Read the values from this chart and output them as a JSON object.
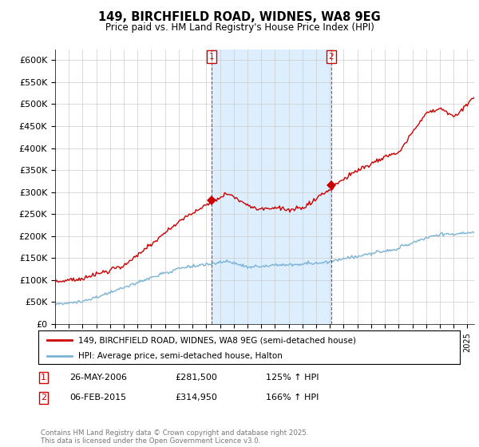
{
  "title": "149, BIRCHFIELD ROAD, WIDNES, WA8 9EG",
  "subtitle": "Price paid vs. HM Land Registry's House Price Index (HPI)",
  "ylim": [
    0,
    625000
  ],
  "yticks": [
    0,
    50000,
    100000,
    150000,
    200000,
    250000,
    300000,
    350000,
    400000,
    450000,
    500000,
    550000,
    600000
  ],
  "ytick_labels": [
    "£0",
    "£50K",
    "£100K",
    "£150K",
    "£200K",
    "£250K",
    "£300K",
    "£350K",
    "£400K",
    "£450K",
    "£500K",
    "£550K",
    "£600K"
  ],
  "xlim_start": 1995.0,
  "xlim_end": 2025.5,
  "legend_line1": "149, BIRCHFIELD ROAD, WIDNES, WA8 9EG (semi-detached house)",
  "legend_line2": "HPI: Average price, semi-detached house, Halton",
  "sale1_date": "26-MAY-2006",
  "sale1_price": 281500,
  "sale1_x": 2006.38,
  "sale2_date": "06-FEB-2015",
  "sale2_price": 314950,
  "sale2_x": 2015.08,
  "sale1_pct": "125% ↑ HPI",
  "sale2_pct": "166% ↑ HPI",
  "copyright": "Contains HM Land Registry data © Crown copyright and database right 2025.\nThis data is licensed under the Open Government Licence v3.0.",
  "red_color": "#cc0000",
  "blue_color": "#7ab3d4",
  "shade_color": "#ddeeff",
  "background_color": "#ffffff",
  "grid_color": "#cccccc"
}
